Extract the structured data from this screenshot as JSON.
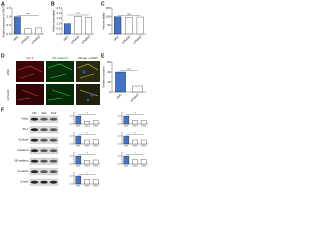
{
  "panels": [
    "A",
    "B",
    "C",
    "D",
    "E",
    "F"
  ],
  "images": {
    "rows": [
      "siNC",
      "siTwist1"
    ],
    "columns": [
      "ZO-1",
      "VE-cadherin",
      "Merge + DAPI"
    ]
  },
  "blot": {
    "lanes": [
      "NC",
      "Tw1",
      "Tw2"
    ],
    "rows": [
      "Twist1",
      "ZO-1",
      "Occludin",
      "Claudin-5",
      "VE-cadherin",
      "β-catenin",
      "β-actin"
    ]
  },
  "chart_data": [
    {
      "type": "bar",
      "ylabel": "Relative expression of TWIST1",
      "categories": [
        "siNC",
        "siTwist1",
        "siTwist2"
      ],
      "values": [
        1,
        0.3,
        0.35
      ],
      "colors": [
        "#4472c4",
        "#ffffff",
        "#ffffff"
      ],
      "ylim": [
        0,
        1.5
      ],
      "yticks": [
        {
          "value": 0,
          "label": "0.0"
        },
        {
          "value": 0.5,
          "label": "0.5"
        },
        {
          "value": 1,
          "label": "1.0"
        },
        {
          "value": 1.5,
          "label": "1.5"
        }
      ],
      "sig": "***"
    },
    {
      "type": "bar",
      "ylabel": "Relative permeability",
      "categories": [
        "siNC",
        "siTwist1",
        "siTwist2"
      ],
      "values": [
        1,
        1.7,
        1.6
      ],
      "colors": [
        "#4472c4",
        "#ffffff",
        "#ffffff"
      ],
      "ylim": [
        0,
        2.5
      ],
      "yticks": [
        {
          "value": 0,
          "label": "0.0"
        },
        {
          "value": 0.5,
          "label": "0.5"
        },
        {
          "value": 1,
          "label": "1.0"
        },
        {
          "value": 1.5,
          "label": "1.5"
        },
        {
          "value": 2,
          "label": "2.0"
        },
        {
          "value": 2.5,
          "label": "2.5"
        }
      ],
      "sig": "***"
    },
    {
      "type": "bar",
      "ylabel": "Percent viability",
      "categories": [
        "siNC",
        "siTwist1",
        "siTwist2"
      ],
      "values": [
        100,
        97,
        98
      ],
      "colors": [
        "#4472c4",
        "#ffffff",
        "#ffffff"
      ],
      "ylim": [
        0,
        150
      ],
      "yticks": [
        0,
        50,
        100,
        150
      ],
      "sig": "ns"
    },
    {
      "type": "bar",
      "ylabel": "Number of junctions",
      "categories": [
        "siNC",
        "siTwist1"
      ],
      "values": [
        40,
        12
      ],
      "colors": [
        "#4472c4",
        "#ffffff"
      ],
      "ylim": [
        0,
        60
      ],
      "yticks": [
        0,
        20,
        40,
        60
      ],
      "sig": "***"
    },
    {
      "type": "bar",
      "categories": [
        "siNC",
        "siTw1",
        "siTw2"
      ],
      "values": [
        1,
        0.35,
        0.4
      ],
      "colors": [
        "#4472c4",
        "#ffffff",
        "#ffffff"
      ],
      "ylim": [
        0,
        1.5
      ],
      "yticks": [
        {
          "value": 0,
          "label": "0.0"
        },
        {
          "value": 1,
          "label": "1.0"
        }
      ],
      "sig": "***"
    },
    {
      "type": "bar",
      "categories": [
        "siNC",
        "siTw1",
        "siTw2"
      ],
      "values": [
        1,
        0.5,
        0.55
      ],
      "colors": [
        "#4472c4",
        "#ffffff",
        "#ffffff"
      ],
      "ylim": [
        0,
        1.5
      ],
      "yticks": [
        {
          "value": 0,
          "label": "0.0"
        },
        {
          "value": 1,
          "label": "1.0"
        }
      ],
      "sig": "***"
    },
    {
      "type": "bar",
      "categories": [
        "siNC",
        "siTw1",
        "siTw2"
      ],
      "values": [
        1,
        0.45,
        0.5
      ],
      "colors": [
        "#4472c4",
        "#ffffff",
        "#ffffff"
      ],
      "ylim": [
        0,
        1.5
      ],
      "yticks": [
        {
          "value": 0,
          "label": "0.0"
        },
        {
          "value": 1,
          "label": "1.0"
        }
      ],
      "sig": "***"
    },
    {
      "type": "bar",
      "categories": [
        "siNC",
        "siTw1",
        "siTw2"
      ],
      "values": [
        1,
        0.6,
        0.55
      ],
      "colors": [
        "#4472c4",
        "#ffffff",
        "#ffffff"
      ],
      "ylim": [
        0,
        1.5
      ],
      "yticks": [
        {
          "value": 0,
          "label": "0.0"
        },
        {
          "value": 1,
          "label": "1.0"
        }
      ],
      "sig": "**"
    },
    {
      "type": "bar",
      "categories": [
        "siNC",
        "siTw1",
        "siTw2"
      ],
      "values": [
        1,
        0.4,
        0.45
      ],
      "colors": [
        "#4472c4",
        "#ffffff",
        "#ffffff"
      ],
      "ylim": [
        0,
        1.5
      ],
      "yticks": [
        {
          "value": 0,
          "label": "0.0"
        },
        {
          "value": 1,
          "label": "1.0"
        }
      ],
      "sig": "***"
    },
    {
      "type": "bar",
      "categories": [
        "siNC",
        "siTw1",
        "siTw2"
      ],
      "values": [
        1,
        0.5,
        0.5
      ],
      "colors": [
        "#4472c4",
        "#ffffff",
        "#ffffff"
      ],
      "ylim": [
        0,
        1.5
      ],
      "yticks": [
        {
          "value": 0,
          "label": "0.0"
        },
        {
          "value": 1,
          "label": "1.0"
        }
      ],
      "sig": "***"
    },
    {
      "type": "bar",
      "categories": [
        "siNC",
        "siTw1",
        "siTw2"
      ],
      "values": [
        1,
        0.55,
        0.6
      ],
      "colors": [
        "#4472c4",
        "#ffffff",
        "#ffffff"
      ],
      "ylim": [
        0,
        1.5
      ],
      "yticks": [
        {
          "value": 0,
          "label": "0.0"
        },
        {
          "value": 1,
          "label": "1.0"
        }
      ],
      "sig": "**"
    }
  ]
}
